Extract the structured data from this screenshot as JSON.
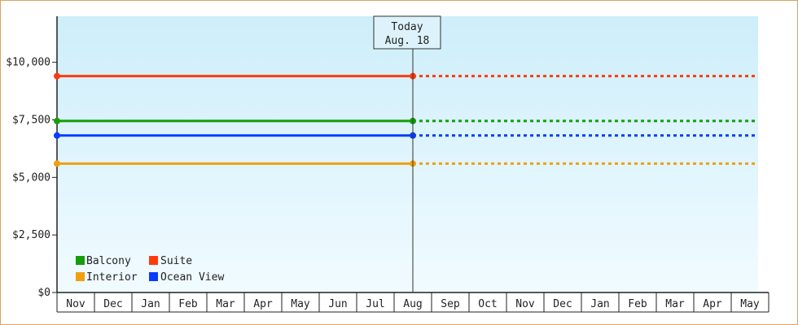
{
  "chart_data": {
    "type": "line",
    "y_ticks": [
      "$0",
      "$2,500",
      "$5,000",
      "$7,500",
      "$10,000"
    ],
    "ylim": [
      0,
      12000
    ],
    "months": [
      "Nov",
      "Dec",
      "Jan",
      "Feb",
      "Mar",
      "Apr",
      "May",
      "Jun",
      "Jul",
      "Aug",
      "Sep",
      "Oct",
      "Nov",
      "Dec",
      "Jan",
      "Feb",
      "Mar",
      "Apr",
      "May"
    ],
    "today": {
      "line1": "Today",
      "line2": "Aug. 18",
      "month_index": 9.0
    },
    "series": [
      {
        "name": "Suite",
        "color": "#ff3a0a",
        "value": 9400,
        "start_value": 9400,
        "today_value": 9400,
        "projected": 9400
      },
      {
        "name": "Balcony",
        "color": "#139e0a",
        "value": 7450,
        "start_value": 7450,
        "today_value": 7450,
        "projected": 7450
      },
      {
        "name": "Ocean View",
        "color": "#0a3cff",
        "value": 6820,
        "start_value": 6820,
        "today_value": 6820,
        "projected": 6820
      },
      {
        "name": "Interior",
        "color": "#f0a010",
        "value": 5600,
        "start_value": 5600,
        "today_value": 5600,
        "projected": 5600
      }
    ],
    "legend": [
      {
        "name": "Balcony",
        "color": "#139e0a"
      },
      {
        "name": "Suite",
        "color": "#ff3a0a"
      },
      {
        "name": "Interior",
        "color": "#f0a010"
      },
      {
        "name": "Ocean View",
        "color": "#0a3cff"
      }
    ],
    "legend_position": "bottom-left",
    "grid": false
  }
}
